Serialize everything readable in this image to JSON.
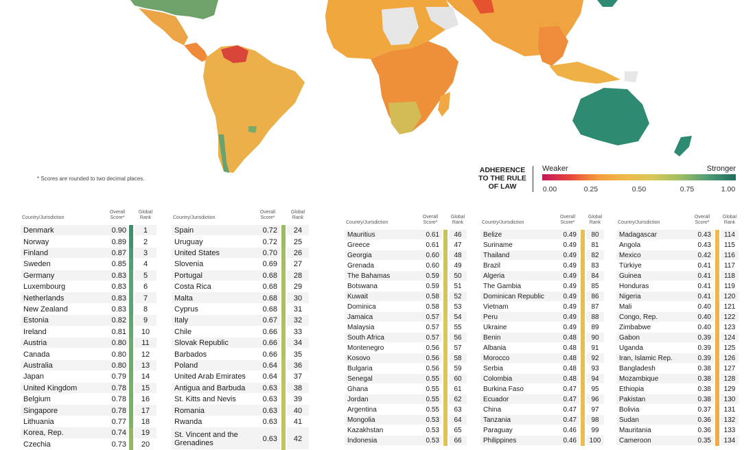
{
  "footnote": "* Scores are rounded to two decimal places.",
  "legend": {
    "title": [
      "ADHERENCE",
      "TO THE RULE",
      "OF LAW"
    ],
    "weaker": "Weaker",
    "stronger": "Stronger",
    "ticks": [
      "0.00",
      "0.25",
      "0.50",
      "0.75",
      "1.00"
    ],
    "colors": [
      "#c2185b",
      "#e8453c",
      "#f39c3c",
      "#f0b94a",
      "#d8c75a",
      "#9dbd62",
      "#4e9c76",
      "#1e6a5c"
    ]
  },
  "headers": {
    "country": "Country/Jurisdiction",
    "score": [
      "Overall",
      "Score*"
    ],
    "rank": [
      "Global",
      "Rank"
    ]
  },
  "chart_data": {
    "type": "table",
    "columns": [
      "Country/Jurisdiction",
      "Overall Score*",
      "Global Rank"
    ],
    "tables": [
      [
        [
          "Denmark",
          "0.90",
          "1"
        ],
        [
          "Norway",
          "0.89",
          "2"
        ],
        [
          "Finland",
          "0.87",
          "3"
        ],
        [
          "Sweden",
          "0.85",
          "4"
        ],
        [
          "Germany",
          "0.83",
          "5"
        ],
        [
          "Luxembourg",
          "0.83",
          "6"
        ],
        [
          "Netherlands",
          "0.83",
          "7"
        ],
        [
          "New Zealand",
          "0.83",
          "8"
        ],
        [
          "Estonia",
          "0.82",
          "9"
        ],
        [
          "Ireland",
          "0.81",
          "10"
        ],
        [
          "Austria",
          "0.80",
          "11"
        ],
        [
          "Canada",
          "0.80",
          "12"
        ],
        [
          "Australia",
          "0.80",
          "13"
        ],
        [
          "Japan",
          "0.79",
          "14"
        ],
        [
          "United Kingdom",
          "0.78",
          "15"
        ],
        [
          "Belgium",
          "0.78",
          "16"
        ],
        [
          "Singapore",
          "0.78",
          "17"
        ],
        [
          "Lithuania",
          "0.77",
          "18"
        ],
        [
          "Korea, Rep.",
          "0.74",
          "19"
        ],
        [
          "Czechia",
          "0.73",
          "20"
        ]
      ],
      [
        [
          "Spain",
          "0.72",
          "24"
        ],
        [
          "Uruguay",
          "0.72",
          "25"
        ],
        [
          "United States",
          "0.70",
          "26"
        ],
        [
          "Slovenia",
          "0.69",
          "27"
        ],
        [
          "Portugal",
          "0.68",
          "28"
        ],
        [
          "Costa Rica",
          "0.68",
          "29"
        ],
        [
          "Malta",
          "0.68",
          "30"
        ],
        [
          "Cyprus",
          "0.68",
          "31"
        ],
        [
          "Italy",
          "0.67",
          "32"
        ],
        [
          "Chile",
          "0.66",
          "33"
        ],
        [
          "Slovak Republic",
          "0.66",
          "34"
        ],
        [
          "Barbados",
          "0.66",
          "35"
        ],
        [
          "Poland",
          "0.64",
          "36"
        ],
        [
          "United Arab Emirates",
          "0.64",
          "37"
        ],
        [
          "Antigua and Barbuda",
          "0.63",
          "38"
        ],
        [
          "St. Kitts and Nevis",
          "0.63",
          "39"
        ],
        [
          "Romania",
          "0.63",
          "40"
        ],
        [
          "Rwanda",
          "0.63",
          "41"
        ],
        [
          "St. Vincent and the Grenadines",
          "0.63",
          "42"
        ]
      ],
      [
        [
          "Mauritius",
          "0.61",
          "46"
        ],
        [
          "Greece",
          "0.61",
          "47"
        ],
        [
          "Georgia",
          "0.60",
          "48"
        ],
        [
          "Grenada",
          "0.60",
          "49"
        ],
        [
          "The Bahamas",
          "0.59",
          "50"
        ],
        [
          "Botswana",
          "0.59",
          "51"
        ],
        [
          "Kuwait",
          "0.58",
          "52"
        ],
        [
          "Dominica",
          "0.58",
          "53"
        ],
        [
          "Jamaica",
          "0.57",
          "54"
        ],
        [
          "Malaysia",
          "0.57",
          "55"
        ],
        [
          "South Africa",
          "0.57",
          "56"
        ],
        [
          "Montenegro",
          "0.56",
          "57"
        ],
        [
          "Kosovo",
          "0.56",
          "58"
        ],
        [
          "Bulgaria",
          "0.56",
          "59"
        ],
        [
          "Senegal",
          "0.55",
          "60"
        ],
        [
          "Ghana",
          "0.55",
          "61"
        ],
        [
          "Jordan",
          "0.55",
          "62"
        ],
        [
          "Argentina",
          "0.55",
          "63"
        ],
        [
          "Mongolia",
          "0.53",
          "64"
        ],
        [
          "Kazakhstan",
          "0.53",
          "65"
        ],
        [
          "Indonesia",
          "0.53",
          "66"
        ]
      ],
      [
        [
          "Belize",
          "0.49",
          "80"
        ],
        [
          "Suriname",
          "0.49",
          "81"
        ],
        [
          "Thailand",
          "0.49",
          "82"
        ],
        [
          "Brazil",
          "0.49",
          "83"
        ],
        [
          "Algeria",
          "0.49",
          "84"
        ],
        [
          "The Gambia",
          "0.49",
          "85"
        ],
        [
          "Dominican Republic",
          "0.49",
          "86"
        ],
        [
          "Vietnam",
          "0.49",
          "87"
        ],
        [
          "Peru",
          "0.49",
          "88"
        ],
        [
          "Ukraine",
          "0.49",
          "89"
        ],
        [
          "Benin",
          "0.48",
          "90"
        ],
        [
          "Albania",
          "0.48",
          "91"
        ],
        [
          "Morocco",
          "0.48",
          "92"
        ],
        [
          "Serbia",
          "0.48",
          "93"
        ],
        [
          "Colombia",
          "0.48",
          "94"
        ],
        [
          "Burkina Faso",
          "0.47",
          "95"
        ],
        [
          "Ecuador",
          "0.47",
          "96"
        ],
        [
          "China",
          "0.47",
          "97"
        ],
        [
          "Tanzania",
          "0.47",
          "98"
        ],
        [
          "Paraguay",
          "0.46",
          "99"
        ],
        [
          "Philippines",
          "0.46",
          "100"
        ]
      ],
      [
        [
          "Madagascar",
          "0.43",
          "114"
        ],
        [
          "Angola",
          "0.43",
          "115"
        ],
        [
          "Mexico",
          "0.42",
          "116"
        ],
        [
          "Türkiye",
          "0.41",
          "117"
        ],
        [
          "Guinea",
          "0.41",
          "118"
        ],
        [
          "Honduras",
          "0.41",
          "119"
        ],
        [
          "Nigeria",
          "0.41",
          "120"
        ],
        [
          "Mali",
          "0.40",
          "121"
        ],
        [
          "Congo, Rep.",
          "0.40",
          "122"
        ],
        [
          "Zimbabwe",
          "0.40",
          "123"
        ],
        [
          "Gabon",
          "0.39",
          "124"
        ],
        [
          "Uganda",
          "0.39",
          "125"
        ],
        [
          "Iran, Islamic Rep.",
          "0.39",
          "126"
        ],
        [
          "Bangladesh",
          "0.38",
          "127"
        ],
        [
          "Mozambique",
          "0.38",
          "128"
        ],
        [
          "Ethiopia",
          "0.38",
          "129"
        ],
        [
          "Pakistan",
          "0.38",
          "130"
        ],
        [
          "Bolivia",
          "0.37",
          "131"
        ],
        [
          "Sudan",
          "0.36",
          "132"
        ],
        [
          "Mauritania",
          "0.36",
          "133"
        ],
        [
          "Cameroon",
          "0.35",
          "134"
        ]
      ]
    ]
  }
}
